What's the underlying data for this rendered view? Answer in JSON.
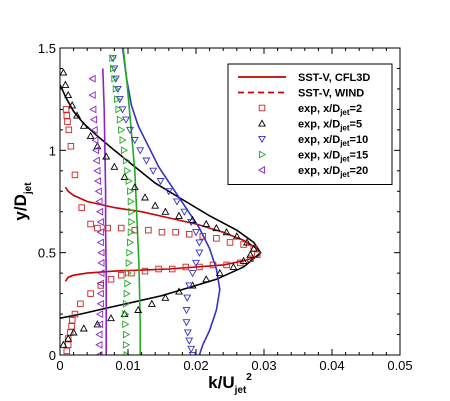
{
  "chart_data": {
    "type": "scatter",
    "xlabel": {
      "main": "k/U",
      "sub": "jet",
      "sup": "2"
    },
    "ylabel": {
      "main": "y/D",
      "sub": "jet"
    },
    "xlim": [
      0,
      0.05
    ],
    "ylim": [
      0,
      1.5
    ],
    "xticks": [
      0,
      0.01,
      0.02,
      0.03,
      0.04,
      0.05
    ],
    "xtick_labels": [
      "0",
      "0.01",
      "0.02",
      "0.03",
      "0.04",
      "0.05"
    ],
    "yticks": [
      0,
      0.5,
      1,
      1.5
    ],
    "ytick_labels": [
      "0",
      "0.5",
      "1",
      "1.5"
    ],
    "grid": false,
    "legend_position": "top-right",
    "legend": [
      {
        "main": "SST-V, CFL3D",
        "sub": "",
        "tail": "",
        "kind": "line-solid",
        "color": "#cc0000"
      },
      {
        "main": "SST-V, WIND",
        "sub": "",
        "tail": "",
        "kind": "line-dashed",
        "color": "#cc0000"
      },
      {
        "main": "exp, x/D",
        "sub": "jet",
        "tail": "=2",
        "kind": "square",
        "color": "#cc2222"
      },
      {
        "main": "exp, x/D",
        "sub": "jet",
        "tail": "=5",
        "kind": "triangle-up",
        "color": "#000000"
      },
      {
        "main": "exp, x/D",
        "sub": "jet",
        "tail": "=10",
        "kind": "triangle-down",
        "color": "#3333cc"
      },
      {
        "main": "exp, x/D",
        "sub": "jet",
        "tail": "=15",
        "kind": "triangle-right",
        "color": "#22aa22"
      },
      {
        "main": "exp, x/D",
        "sub": "jet",
        "tail": "=20",
        "kind": "triangle-left",
        "color": "#8822cc"
      }
    ],
    "lines": [
      {
        "name": "x/Djet=2",
        "color": "#cc0000",
        "x": [
          0.0008,
          0.0012,
          0.002,
          0.004,
          0.008,
          0.012,
          0.016,
          0.02,
          0.024,
          0.027,
          0.029,
          0.0295,
          0.029,
          0.027,
          0.024,
          0.02,
          0.016,
          0.012,
          0.008,
          0.004,
          0.002,
          0.0012,
          0.0008
        ],
        "y": [
          0.36,
          0.38,
          0.39,
          0.4,
          0.41,
          0.415,
          0.42,
          0.43,
          0.44,
          0.46,
          0.48,
          0.5,
          0.52,
          0.56,
          0.6,
          0.64,
          0.67,
          0.7,
          0.72,
          0.75,
          0.78,
          0.8,
          0.82
        ]
      },
      {
        "name": "x/Djet=5",
        "color": "#000000",
        "x": [
          0,
          0.003,
          0.007,
          0.011,
          0.015,
          0.019,
          0.023,
          0.027,
          0.0295,
          0.0285,
          0.026,
          0.022,
          0.018,
          0.014,
          0.011,
          0.008,
          0.0055,
          0.0035,
          0.002,
          0.001,
          0
        ],
        "y": [
          0.18,
          0.2,
          0.23,
          0.26,
          0.29,
          0.33,
          0.37,
          0.43,
          0.5,
          0.55,
          0.61,
          0.68,
          0.76,
          0.84,
          0.92,
          1.0,
          1.07,
          1.13,
          1.19,
          1.25,
          1.32
        ]
      },
      {
        "name": "x/Djet=10",
        "color": "#3333cc",
        "x": [
          0.0205,
          0.021,
          0.022,
          0.023,
          0.0235,
          0.023,
          0.022,
          0.0205,
          0.0185,
          0.0165,
          0.0145,
          0.013,
          0.0115,
          0.0105,
          0.0098,
          0.0092
        ],
        "y": [
          0,
          0.05,
          0.12,
          0.22,
          0.32,
          0.42,
          0.52,
          0.62,
          0.72,
          0.82,
          0.92,
          1.02,
          1.12,
          1.22,
          1.35,
          1.5
        ]
      },
      {
        "name": "x/Djet=15",
        "color": "#22aa22",
        "x": [
          0.0118,
          0.0118,
          0.0117,
          0.0116,
          0.0114,
          0.0112,
          0.011,
          0.0106,
          0.0102,
          0.0098,
          0.0093
        ],
        "y": [
          0,
          0.15,
          0.3,
          0.45,
          0.6,
          0.75,
          0.9,
          1.05,
          1.2,
          1.35,
          1.5
        ]
      },
      {
        "name": "x/Djet=20",
        "color": "#8822cc",
        "x": [
          0.0068,
          0.0068,
          0.0068,
          0.0067,
          0.0067,
          0.0066,
          0.0065,
          0.0064,
          0.0063
        ],
        "y": [
          0,
          0.2,
          0.4,
          0.6,
          0.8,
          1.0,
          1.2,
          1.3,
          1.4
        ]
      }
    ],
    "series": [
      {
        "name": "exp, x/Djet=2",
        "marker": "square",
        "color": "#cc2222",
        "x": [
          0.001,
          0.0012,
          0.0012,
          0.0015,
          0.0017,
          0.0018,
          0.0022,
          0.003,
          0.0045,
          0.006,
          0.0075,
          0.009,
          0.0105,
          0.0125,
          0.0145,
          0.0165,
          0.0185,
          0.0205,
          0.0225,
          0.0245,
          0.0265,
          0.028,
          0.029,
          0.0285,
          0.027,
          0.025,
          0.023,
          0.021,
          0.019,
          0.017,
          0.015,
          0.013,
          0.011,
          0.009,
          0.007,
          0.0055,
          0.0045,
          0.0032,
          0.0022,
          0.0016,
          0.0013,
          0.0011,
          0.001,
          0.0009
        ],
        "y": [
          0.02,
          0.05,
          0.08,
          0.11,
          0.14,
          0.17,
          0.2,
          0.25,
          0.3,
          0.34,
          0.37,
          0.39,
          0.4,
          0.41,
          0.42,
          0.42,
          0.43,
          0.43,
          0.44,
          0.44,
          0.45,
          0.47,
          0.49,
          0.52,
          0.54,
          0.55,
          0.57,
          0.58,
          0.59,
          0.6,
          0.6,
          0.61,
          0.61,
          0.62,
          0.62,
          0.62,
          0.64,
          0.72,
          0.88,
          1.02,
          1.1,
          1.14,
          1.17,
          1.2
        ]
      },
      {
        "name": "exp, x/Djet=5",
        "marker": "triangle-up",
        "color": "#000000",
        "x": [
          0.0005,
          0.0012,
          0.002,
          0.0035,
          0.0055,
          0.0075,
          0.0095,
          0.0115,
          0.0135,
          0.0155,
          0.0175,
          0.0195,
          0.0215,
          0.0235,
          0.0255,
          0.027,
          0.028,
          0.0285,
          0.0275,
          0.026,
          0.0245,
          0.023,
          0.0215,
          0.0195,
          0.0175,
          0.0155,
          0.014,
          0.0125,
          0.011,
          0.0095,
          0.008,
          0.0068,
          0.0055,
          0.0045,
          0.0035,
          0.0025,
          0.0018,
          0.0012,
          0.0008,
          0.0005
        ],
        "y": [
          0.05,
          0.08,
          0.11,
          0.13,
          0.15,
          0.18,
          0.2,
          0.22,
          0.25,
          0.28,
          0.31,
          0.34,
          0.37,
          0.4,
          0.43,
          0.46,
          0.49,
          0.52,
          0.55,
          0.58,
          0.6,
          0.62,
          0.64,
          0.66,
          0.68,
          0.7,
          0.73,
          0.77,
          0.82,
          0.87,
          0.92,
          0.97,
          1.02,
          1.07,
          1.12,
          1.17,
          1.22,
          1.27,
          1.32,
          1.38
        ]
      },
      {
        "name": "exp, x/Djet=10",
        "marker": "triangle-down",
        "color": "#3333cc",
        "x": [
          0.0195,
          0.0193,
          0.019,
          0.0188,
          0.0186,
          0.0186,
          0.0187,
          0.019,
          0.0195,
          0.02,
          0.0205,
          0.0205,
          0.02,
          0.0193,
          0.0183,
          0.0172,
          0.016,
          0.0148,
          0.0137,
          0.0127,
          0.0118,
          0.011,
          0.0103,
          0.0097,
          0.0092,
          0.0088,
          0.0085,
          0.0082,
          0.008,
          0.0078
        ],
        "y": [
          0,
          0.03,
          0.07,
          0.11,
          0.16,
          0.22,
          0.28,
          0.34,
          0.4,
          0.45,
          0.5,
          0.55,
          0.6,
          0.65,
          0.7,
          0.75,
          0.8,
          0.85,
          0.9,
          0.95,
          1.0,
          1.05,
          1.1,
          1.15,
          1.2,
          1.25,
          1.3,
          1.35,
          1.4,
          1.45
        ]
      },
      {
        "name": "exp, x/Djet=15",
        "marker": "triangle-right",
        "color": "#22aa22",
        "x": [
          0.0098,
          0.0097,
          0.0097,
          0.0096,
          0.0096,
          0.0097,
          0.0098,
          0.0099,
          0.01,
          0.0101,
          0.0102,
          0.0103,
          0.0104,
          0.0105,
          0.0105,
          0.0104,
          0.0103,
          0.0101,
          0.0099,
          0.0097,
          0.0094,
          0.0092,
          0.009,
          0.0088,
          0.0086,
          0.0084,
          0.0082,
          0.008,
          0.0078,
          0.0077
        ],
        "y": [
          0,
          0.05,
          0.1,
          0.15,
          0.2,
          0.25,
          0.3,
          0.35,
          0.4,
          0.45,
          0.5,
          0.55,
          0.6,
          0.65,
          0.7,
          0.75,
          0.8,
          0.85,
          0.9,
          0.95,
          1.0,
          1.05,
          1.1,
          1.15,
          1.2,
          1.25,
          1.3,
          1.35,
          1.4,
          1.45
        ]
      },
      {
        "name": "exp, x/Djet=20",
        "marker": "triangle-left",
        "color": "#8822cc",
        "x": [
          0.0058,
          0.0058,
          0.0058,
          0.0059,
          0.0059,
          0.006,
          0.006,
          0.006,
          0.0061,
          0.0061,
          0.0061,
          0.006,
          0.006,
          0.006,
          0.0059,
          0.0058,
          0.0057,
          0.0056,
          0.0055,
          0.0054,
          0.0053,
          0.0052,
          0.0051,
          0.005,
          0.0049,
          0.0048,
          0.0048
        ],
        "y": [
          0,
          0.05,
          0.1,
          0.15,
          0.2,
          0.25,
          0.3,
          0.35,
          0.4,
          0.45,
          0.5,
          0.55,
          0.6,
          0.65,
          0.7,
          0.75,
          0.8,
          0.85,
          0.9,
          0.95,
          1.0,
          1.05,
          1.1,
          1.15,
          1.2,
          1.27,
          1.35
        ]
      }
    ]
  }
}
